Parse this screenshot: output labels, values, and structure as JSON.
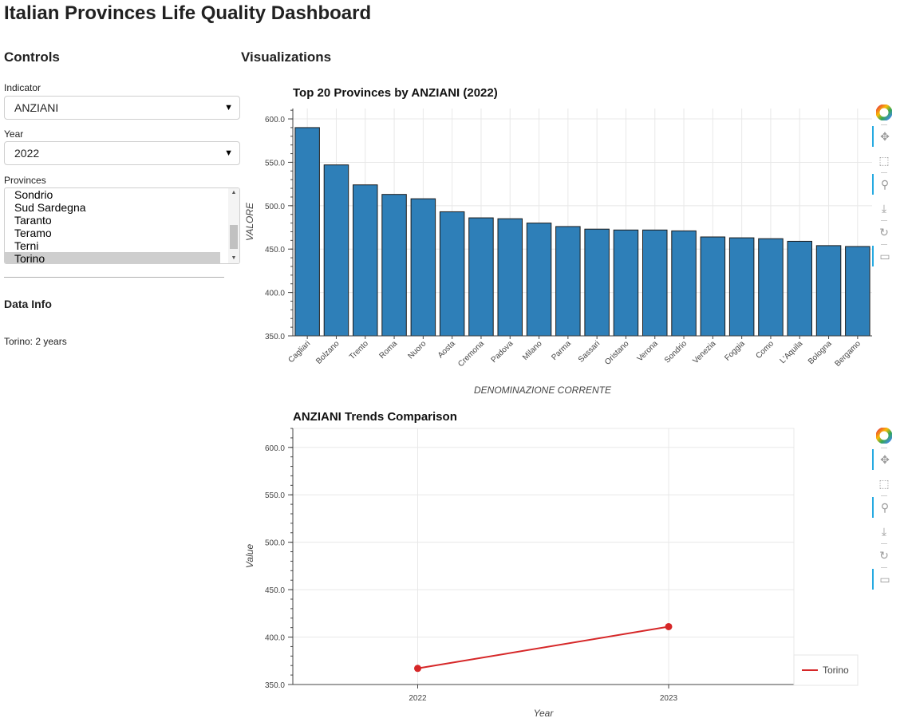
{
  "page": {
    "title": "Italian Provinces Life Quality Dashboard"
  },
  "controls": {
    "heading": "Controls",
    "indicator": {
      "label": "Indicator",
      "value": "ANZIANI"
    },
    "year": {
      "label": "Year",
      "value": "2022"
    },
    "provinces": {
      "label": "Provinces",
      "items": [
        "Sondrio",
        "Sud Sardegna",
        "Taranto",
        "Teramo",
        "Terni",
        "Torino"
      ],
      "selected": "Torino"
    },
    "data_info": {
      "heading": "Data Info",
      "text": "Torino: 2 years"
    }
  },
  "visualizations": {
    "heading": "Visualizations"
  },
  "toolbar_icons": [
    "bokeh-logo-icon",
    "pan-icon",
    "box-zoom-icon",
    "wheel-zoom-icon",
    "save-icon",
    "reset-icon",
    "hover-icon"
  ],
  "colors": {
    "bar": "#2e7fb8",
    "line": "#d62728"
  },
  "chart_data": [
    {
      "type": "bar",
      "title": "Top 20 Provinces by ANZIANI (2022)",
      "xlabel": "DENOMINAZIONE CORRENTE",
      "ylabel": "VALORE",
      "categories": [
        "Cagliari",
        "Bolzano",
        "Trento",
        "Roma",
        "Nuoro",
        "Aosta",
        "Cremona",
        "Padova",
        "Milano",
        "Parma",
        "Sassari",
        "Oristano",
        "Verona",
        "Sondrio",
        "Venezia",
        "Foggia",
        "Como",
        "L'Aquila",
        "Bologna",
        "Bergamo"
      ],
      "values": [
        590,
        547,
        524,
        513,
        508,
        493,
        486,
        485,
        480,
        476,
        473,
        472,
        472,
        471,
        464,
        463,
        462,
        459,
        454,
        453
      ],
      "ylim": [
        350,
        612
      ],
      "yticks": [
        "350.0",
        "400.0",
        "450.0",
        "500.0",
        "550.0",
        "600.0"
      ],
      "grid": true
    },
    {
      "type": "line",
      "title": "ANZIANI Trends Comparison",
      "xlabel": "Year",
      "ylabel": "Value",
      "x": [
        "2022",
        "2023"
      ],
      "series": [
        {
          "name": "Torino",
          "values": [
            367,
            411
          ]
        }
      ],
      "ylim": [
        350,
        620
      ],
      "yticks": [
        "350.0",
        "400.0",
        "450.0",
        "500.0",
        "550.0",
        "600.0"
      ],
      "legend": "bottom-right",
      "grid": true
    }
  ]
}
